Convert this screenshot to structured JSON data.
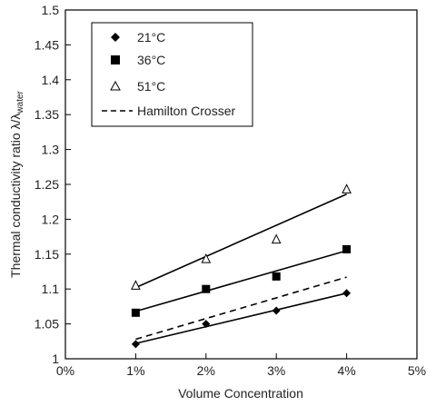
{
  "chart_data": {
    "type": "scatter",
    "xlabel": "Volume Concentration",
    "ylabel_main": "Thermal conductivity ratio λ/λ",
    "ylabel_sub": "water",
    "xlim": [
      0,
      5
    ],
    "ylim": [
      1,
      1.5
    ],
    "x_ticks": [
      0,
      1,
      2,
      3,
      4,
      5
    ],
    "x_tick_labels": [
      "0%",
      "1%",
      "2%",
      "3%",
      "4%",
      "5%"
    ],
    "y_ticks": [
      1,
      1.05,
      1.1,
      1.15,
      1.2,
      1.25,
      1.3,
      1.35,
      1.4,
      1.45,
      1.5
    ],
    "y_tick_labels": [
      "1",
      "1.05",
      "1.1",
      "1.15",
      "1.2",
      "1.25",
      "1.3",
      "1.35",
      "1.4",
      "1.45",
      "1.5"
    ],
    "grid": false,
    "legend_position": "top-left",
    "series": [
      {
        "name": "21°C",
        "marker": "diamond",
        "x": [
          1,
          2,
          3,
          4
        ],
        "y": [
          1.021,
          1.05,
          1.069,
          1.094
        ],
        "fit": [
          [
            1,
            1.022
          ],
          [
            4,
            1.094
          ]
        ]
      },
      {
        "name": "36°C",
        "marker": "square",
        "x": [
          1,
          2,
          3,
          4
        ],
        "y": [
          1.066,
          1.1,
          1.118,
          1.157
        ],
        "fit": [
          [
            1,
            1.068
          ],
          [
            4,
            1.155
          ]
        ]
      },
      {
        "name": "51°C",
        "marker": "triangle-open",
        "x": [
          1,
          2,
          3,
          4
        ],
        "y": [
          1.105,
          1.143,
          1.171,
          1.243
        ],
        "fit": [
          [
            1,
            1.102
          ],
          [
            4,
            1.236
          ]
        ]
      },
      {
        "name": "Hamilton Crosser",
        "marker": "dashed-line",
        "line": [
          [
            1,
            1.028
          ],
          [
            4,
            1.117
          ]
        ]
      }
    ]
  }
}
